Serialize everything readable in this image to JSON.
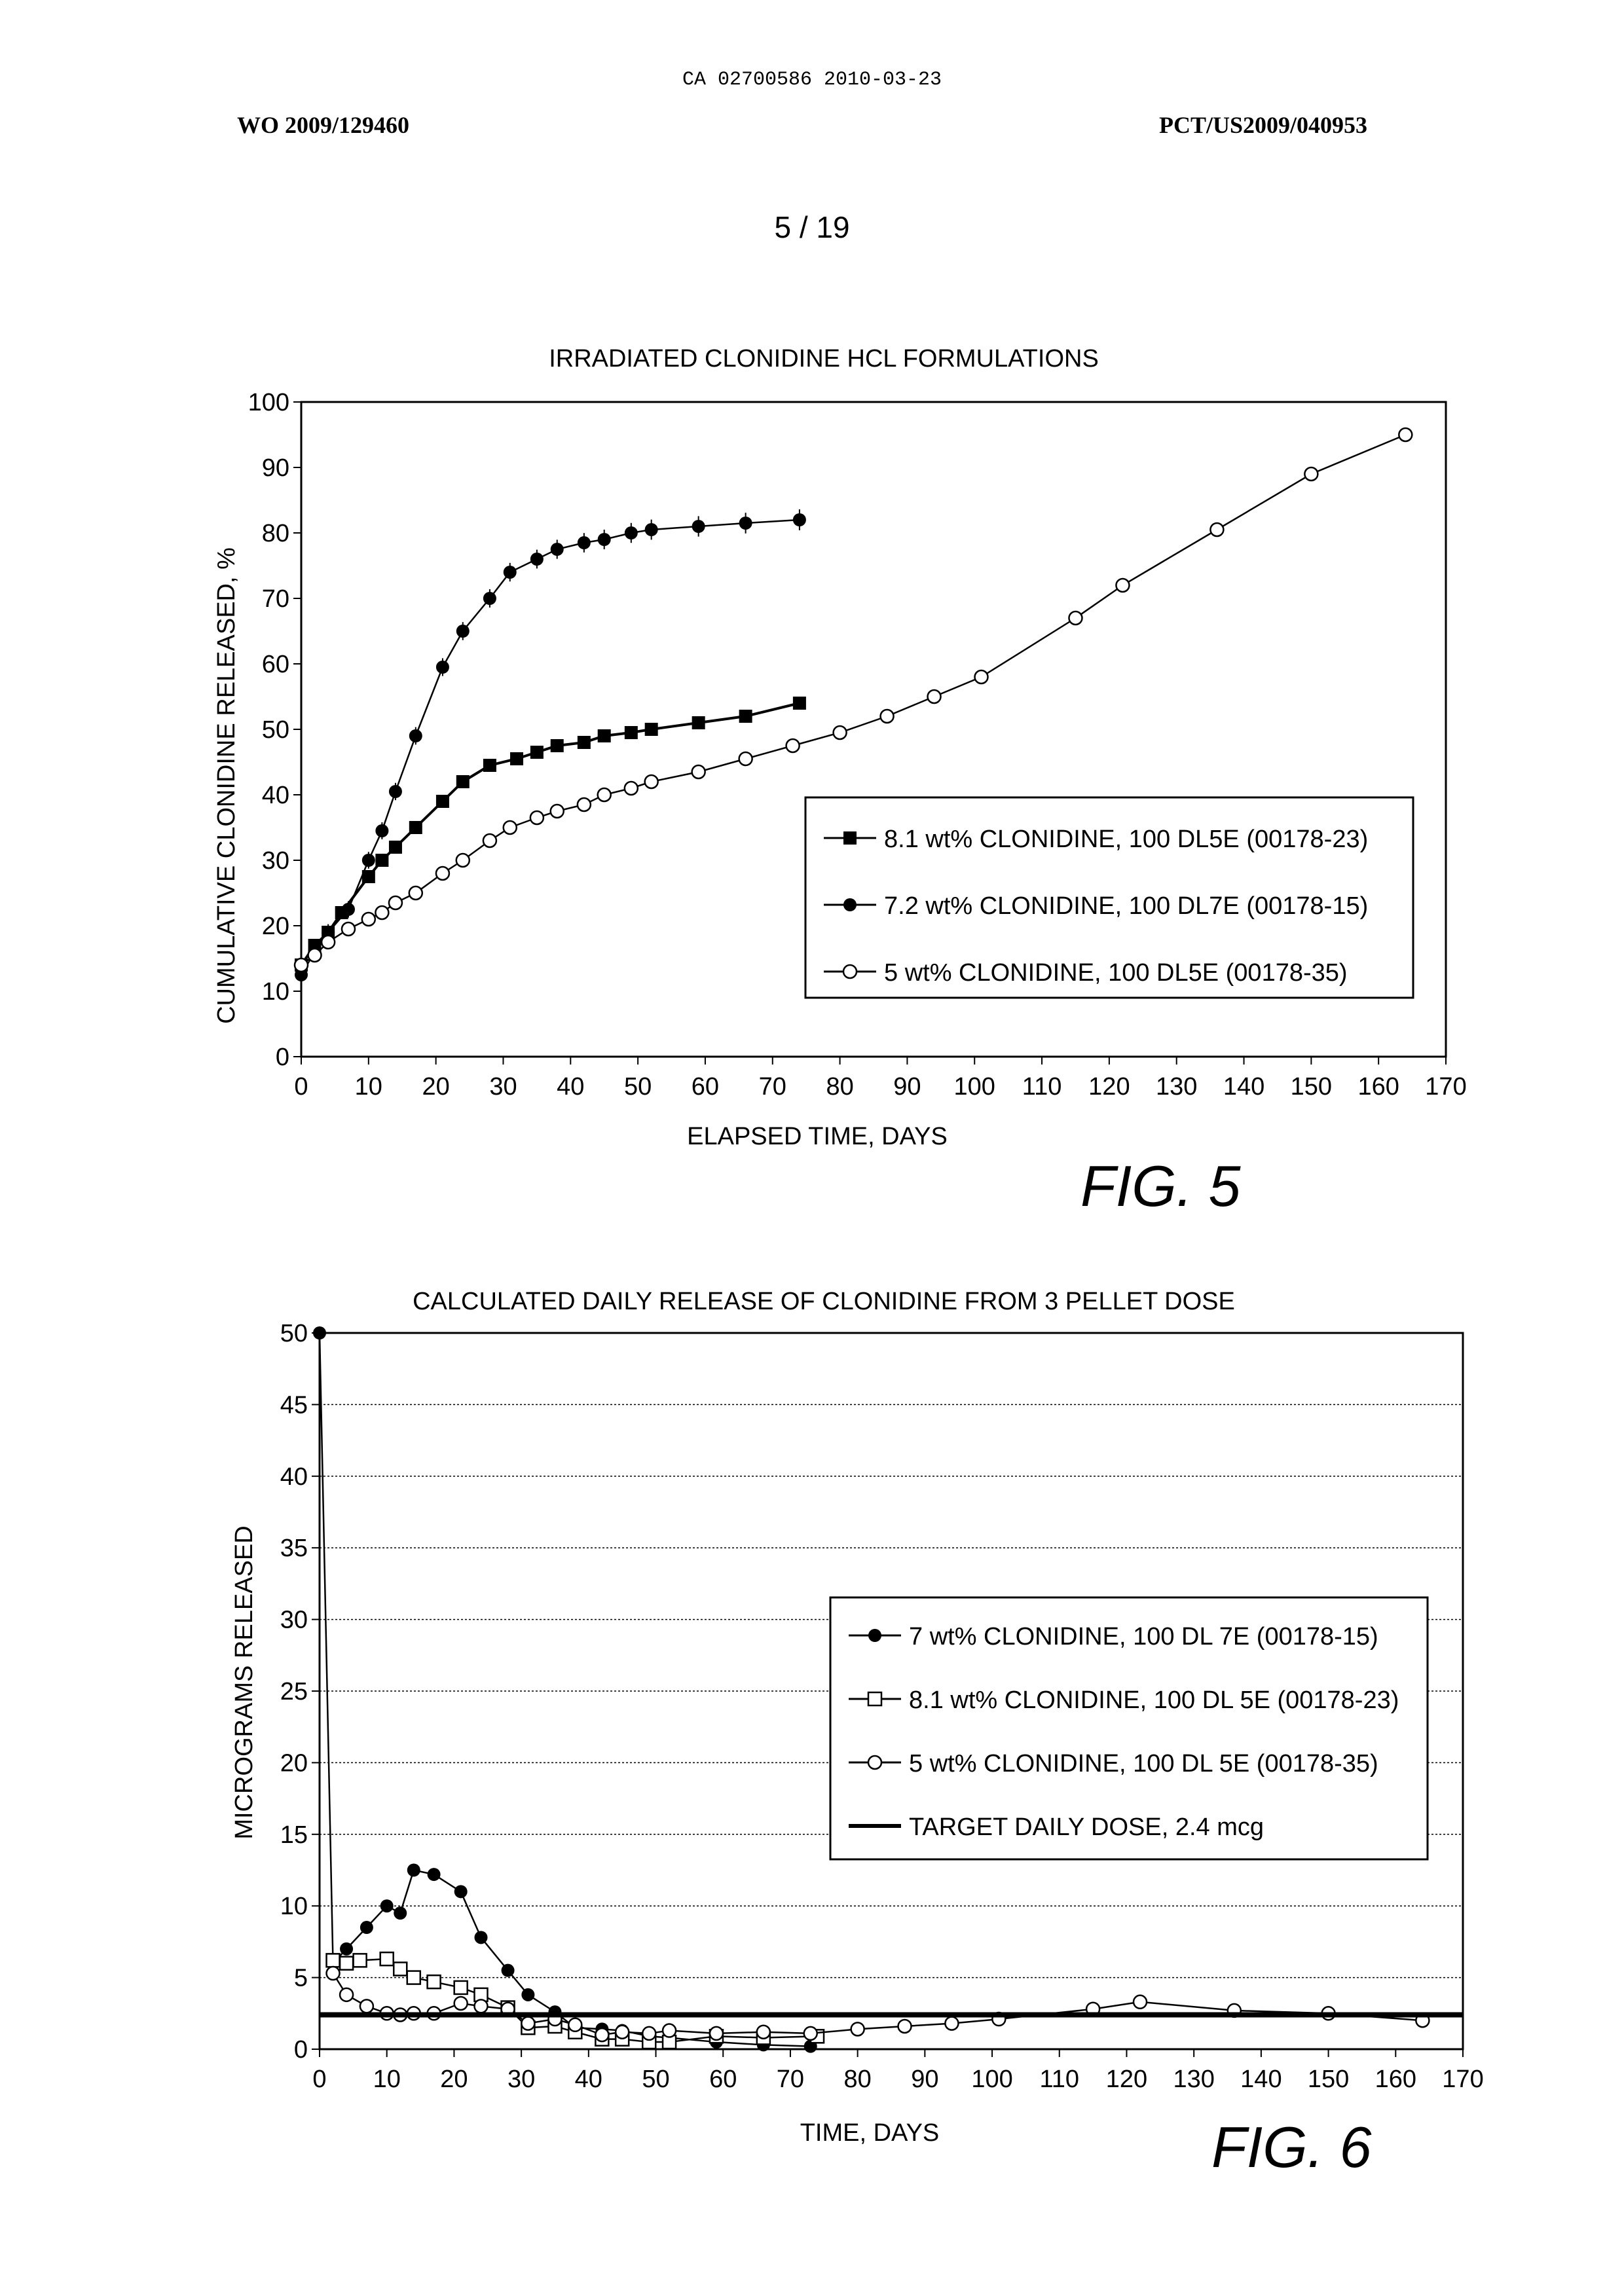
{
  "header": {
    "doc_id": "CA 02700586 2010-03-23",
    "wo_number": "WO 2009/129460",
    "pct_number": "PCT/US2009/040953",
    "page": "5 / 19"
  },
  "chart_data": [
    {
      "type": "line",
      "title": "IRRADIATED CLONIDINE HCL FORMULATIONS",
      "xlabel": "ELAPSED TIME, DAYS",
      "ylabel": "CUMULATIVE  CLONIDINE  RELEASED, %",
      "xlim": [
        0,
        170
      ],
      "ylim": [
        0,
        100
      ],
      "xticks": [
        0,
        10,
        20,
        30,
        40,
        50,
        60,
        70,
        80,
        90,
        100,
        110,
        120,
        130,
        140,
        150,
        160,
        170
      ],
      "yticks": [
        0,
        10,
        20,
        30,
        40,
        50,
        60,
        70,
        80,
        90,
        100
      ],
      "grid": false,
      "legend_position": "bottom-right",
      "figure_label": "FIG. 5",
      "series": [
        {
          "name": "8.1 wt% CLONIDINE, 100 DL5E (00178-23)",
          "marker": "filled-square",
          "color": "#000000",
          "x": [
            0,
            2,
            4,
            6,
            10,
            12,
            14,
            17,
            21,
            24,
            28,
            32,
            35,
            38,
            42,
            45,
            49,
            52,
            59,
            66,
            74
          ],
          "y": [
            14,
            17,
            19,
            22,
            27.5,
            30,
            32,
            35,
            39,
            42,
            44.5,
            45.5,
            46.5,
            47.5,
            48,
            49,
            49.5,
            50,
            51,
            52,
            54
          ]
        },
        {
          "name": "7.2 wt% CLONIDINE, 100 DL7E (00178-15)",
          "marker": "filled-circle",
          "color": "#000000",
          "error_bars": true,
          "x": [
            0,
            2,
            4,
            7,
            10,
            12,
            14,
            17,
            21,
            24,
            28,
            31,
            35,
            38,
            42,
            45,
            49,
            52,
            59,
            66,
            74
          ],
          "y": [
            12.5,
            16,
            19,
            22.5,
            30,
            34.5,
            40.5,
            49,
            59.5,
            65,
            70,
            74,
            76,
            77.5,
            78.5,
            79,
            80,
            80.5,
            81,
            81.5,
            82
          ]
        },
        {
          "name": "5 wt% CLONIDINE, 100 DL5E (00178-35)",
          "marker": "open-circle",
          "color": "#000000",
          "x": [
            0,
            2,
            4,
            7,
            10,
            12,
            14,
            17,
            21,
            24,
            28,
            31,
            35,
            38,
            42,
            45,
            49,
            52,
            59,
            66,
            73,
            80,
            87,
            94,
            101,
            115,
            122,
            136,
            150,
            164
          ],
          "y": [
            14,
            15.5,
            17.5,
            19.5,
            21,
            22,
            23.5,
            25,
            28,
            30,
            33,
            35,
            36.5,
            37.5,
            38.5,
            40,
            41,
            42,
            43.5,
            45.5,
            47.5,
            49.5,
            52,
            55,
            58,
            67,
            72,
            80.5,
            89,
            95
          ]
        }
      ]
    },
    {
      "type": "line",
      "title": "CALCULATED DAILY RELEASE OF CLONIDINE FROM 3 PELLET DOSE",
      "xlabel": "TIME, DAYS",
      "ylabel": "MICROGRAMS RELEASED",
      "xlim": [
        0,
        170
      ],
      "ylim": [
        0,
        50
      ],
      "xticks": [
        0,
        10,
        20,
        30,
        40,
        50,
        60,
        70,
        80,
        90,
        100,
        110,
        120,
        130,
        140,
        150,
        160,
        170
      ],
      "yticks": [
        0,
        5,
        10,
        15,
        20,
        25,
        30,
        35,
        40,
        45,
        50
      ],
      "grid": true,
      "legend_position": "right",
      "figure_label": "FIG. 6",
      "series": [
        {
          "name": "7 wt% CLONIDINE, 100 DL 7E (00178-15)",
          "marker": "filled-circle",
          "color": "#000000",
          "x": [
            0,
            2,
            4,
            7,
            10,
            12,
            14,
            17,
            21,
            24,
            28,
            31,
            35,
            38,
            42,
            45,
            49,
            52,
            59,
            66,
            73
          ],
          "y": [
            50,
            6,
            7,
            8.5,
            10,
            9.5,
            12.5,
            12.2,
            11,
            7.8,
            5.5,
            3.8,
            2.6,
            1.5,
            1.4,
            1.3,
            0.9,
            0.8,
            0.5,
            0.3,
            0.2
          ]
        },
        {
          "name": "8.1 wt% CLONIDINE, 100 DL 5E (00178-23)",
          "marker": "open-square",
          "color": "#000000",
          "x": [
            2,
            4,
            6,
            10,
            12,
            14,
            17,
            21,
            24,
            28,
            31,
            35,
            38,
            42,
            45,
            49,
            52,
            59,
            66,
            74
          ],
          "y": [
            6.2,
            6,
            6.2,
            6.3,
            5.6,
            5,
            4.7,
            4.3,
            3.8,
            2.9,
            1.5,
            1.6,
            1.2,
            0.7,
            0.7,
            0.5,
            0.5,
            0.9,
            0.8,
            0.9
          ]
        },
        {
          "name": "5 wt% CLONIDINE, 100 DL 5E (00178-35)",
          "marker": "open-circle",
          "color": "#000000",
          "x": [
            2,
            4,
            7,
            10,
            12,
            14,
            17,
            21,
            24,
            28,
            31,
            35,
            38,
            42,
            45,
            49,
            52,
            59,
            66,
            73,
            80,
            87,
            94,
            101,
            115,
            122,
            136,
            150,
            164
          ],
          "y": [
            5.3,
            3.8,
            3,
            2.5,
            2.4,
            2.5,
            2.5,
            3.2,
            3,
            2.8,
            1.8,
            2.1,
            1.7,
            1,
            1.2,
            1.1,
            1.3,
            1.1,
            1.2,
            1.1,
            1.4,
            1.6,
            1.8,
            2.1,
            2.8,
            3.3,
            2.7,
            2.5,
            2
          ]
        },
        {
          "name": "TARGET DAILY DOSE, 2.4 mcg",
          "marker": "none",
          "color": "#000000",
          "x": [
            0,
            170
          ],
          "y": [
            2.4,
            2.4
          ]
        }
      ]
    }
  ]
}
